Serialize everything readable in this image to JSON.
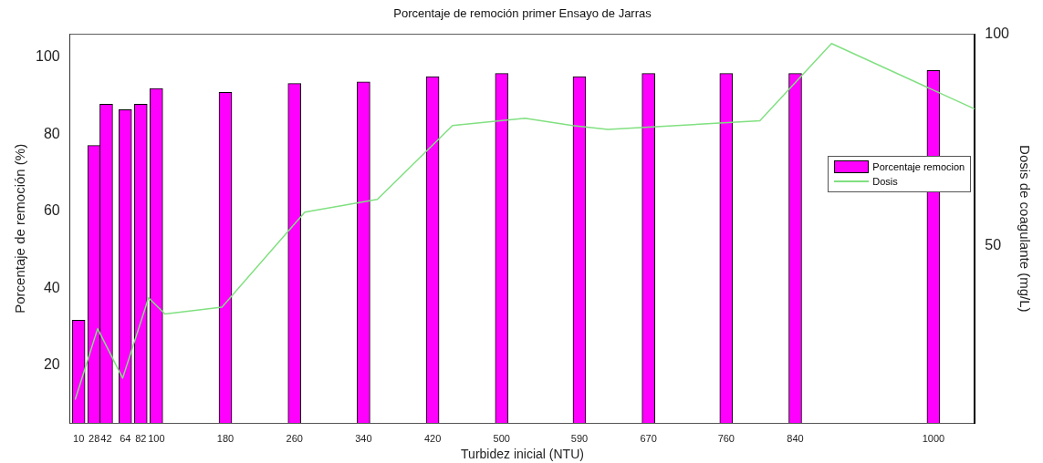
{
  "chart_data": {
    "type": "bar",
    "title": "Porcentaje de remoción primer Ensayo de Jarras",
    "xlabel": "Turbidez inicial (NTU)",
    "ylabel": "Porcentaje de remoción (%)",
    "y2label": "Dosis de coagulante (mg/L)",
    "x": [
      10,
      28,
      42,
      64,
      82,
      100,
      180,
      260,
      340,
      420,
      500,
      590,
      670,
      760,
      840,
      1000
    ],
    "series": [
      {
        "name": "Porcentaje remocion",
        "color": "#ff00ff",
        "values": [
          31.7,
          77.1,
          87.8,
          86.4,
          87.8,
          91.9,
          90.9,
          93.2,
          93.6,
          95.0,
          95.8,
          95.0,
          95.8,
          95.8,
          95.8,
          96.6
        ]
      },
      {
        "name": "Dosis",
        "type": "line",
        "axis": "y2",
        "color": "#80e080",
        "x": [
          6,
          32,
          61,
          91,
          110,
          176,
          272,
          356,
          443,
          527,
          582,
          623,
          799,
          882,
          1048
        ],
        "values": [
          13.5,
          30.3,
          18.6,
          37.6,
          33.8,
          35.4,
          57.9,
          60.9,
          78.4,
          80.1,
          78.4,
          77.5,
          79.5,
          97.8,
          82.3
        ]
      }
    ],
    "xlim": [
      0,
      1048
    ],
    "xticks": [
      10,
      28,
      42,
      64,
      82,
      100,
      180,
      260,
      340,
      420,
      500,
      590,
      670,
      760,
      840,
      1000
    ],
    "ylim": [
      5,
      106
    ],
    "yticks": [
      20,
      40,
      60,
      80,
      100
    ],
    "y2lim": [
      8,
      100
    ],
    "y2ticks": [
      50,
      100
    ],
    "grid": false,
    "legend": "right",
    "marker": "none"
  }
}
